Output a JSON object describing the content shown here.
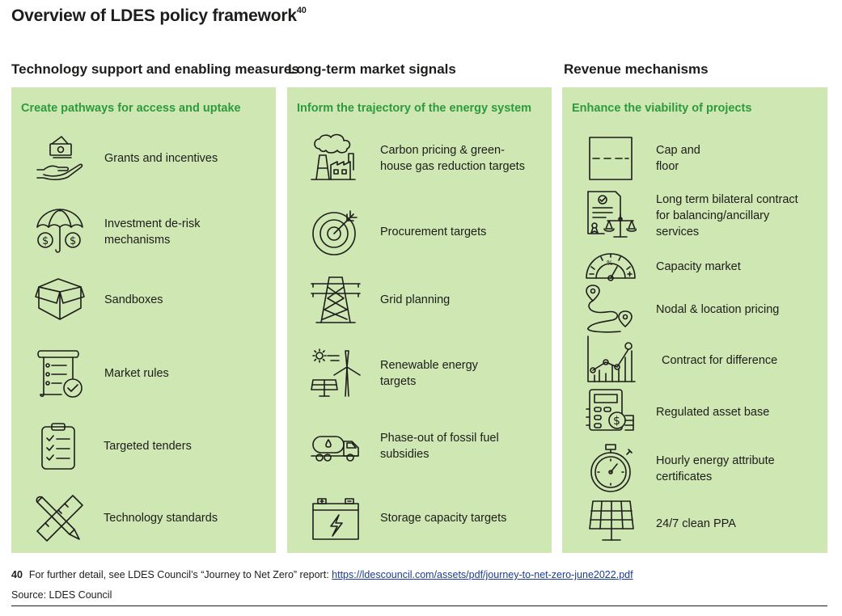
{
  "title": "Overview of LDES policy framework",
  "title_ref": "40",
  "columns": [
    {
      "heading": "Technology support and\nenabling measures",
      "subheading": "Create pathways for access and uptake",
      "items": [
        {
          "label": "Grants and incentives",
          "icon": "money-hand-icon"
        },
        {
          "label": "Investment de-risk\nmechanisms",
          "icon": "umbrella-coins-icon"
        },
        {
          "label": "Sandboxes",
          "icon": "open-box-icon"
        },
        {
          "label": "Market rules",
          "icon": "checklist-scroll-icon"
        },
        {
          "label": "Targeted tenders",
          "icon": "clipboard-checklist-icon"
        },
        {
          "label": "Technology standards",
          "icon": "ruler-pencil-icon"
        }
      ]
    },
    {
      "heading": "Long-term market signals",
      "subheading": "Inform the trajectory of the energy system",
      "items": [
        {
          "label": "Carbon pricing & green-\nhouse gas reduction targets",
          "icon": "factory-smoke-icon"
        },
        {
          "label": "Procurement targets",
          "icon": "target-arrow-icon"
        },
        {
          "label": "Grid planning",
          "icon": "power-pylon-icon"
        },
        {
          "label": "Renewable energy\ntargets",
          "icon": "wind-solar-icon"
        },
        {
          "label": "Phase-out of fossil fuel\nsubsidies",
          "icon": "fuel-truck-icon"
        },
        {
          "label": "Storage capacity targets",
          "icon": "battery-icon"
        }
      ]
    },
    {
      "heading": "Revenue mechanisms",
      "subheading": "Enhance the viability of projects",
      "items": [
        {
          "label": "Cap and\nfloor",
          "icon": "cap-floor-box-icon"
        },
        {
          "label": "Long term bilateral contract\nfor balancing/ancillary\nservices",
          "icon": "contract-scales-icon"
        },
        {
          "label": "Capacity market",
          "icon": "gauge-icon"
        },
        {
          "label": "Nodal & location pricing",
          "icon": "route-pins-icon"
        },
        {
          "label": "Contract for difference",
          "icon": "bar-chart-trend-icon"
        },
        {
          "label": "Regulated asset base",
          "icon": "calculator-coins-icon"
        },
        {
          "label": "Hourly energy attribute\ncertificates",
          "icon": "stopwatch-icon"
        },
        {
          "label": "24/7 clean PPA",
          "icon": "solar-panel-icon"
        }
      ]
    }
  ],
  "footnote": {
    "number": "40",
    "text": "For further detail, see LDES Council’s “Journey to Net Zero” report: ",
    "link": "https://ldescouncil.com/assets/pdf/journey-to-net-zero-june2022.pdf"
  },
  "source": "Source: LDES Council",
  "colors": {
    "panel": "#cfe7b3",
    "subheading": "#2e9a3f",
    "text": "#1d1d1b"
  }
}
